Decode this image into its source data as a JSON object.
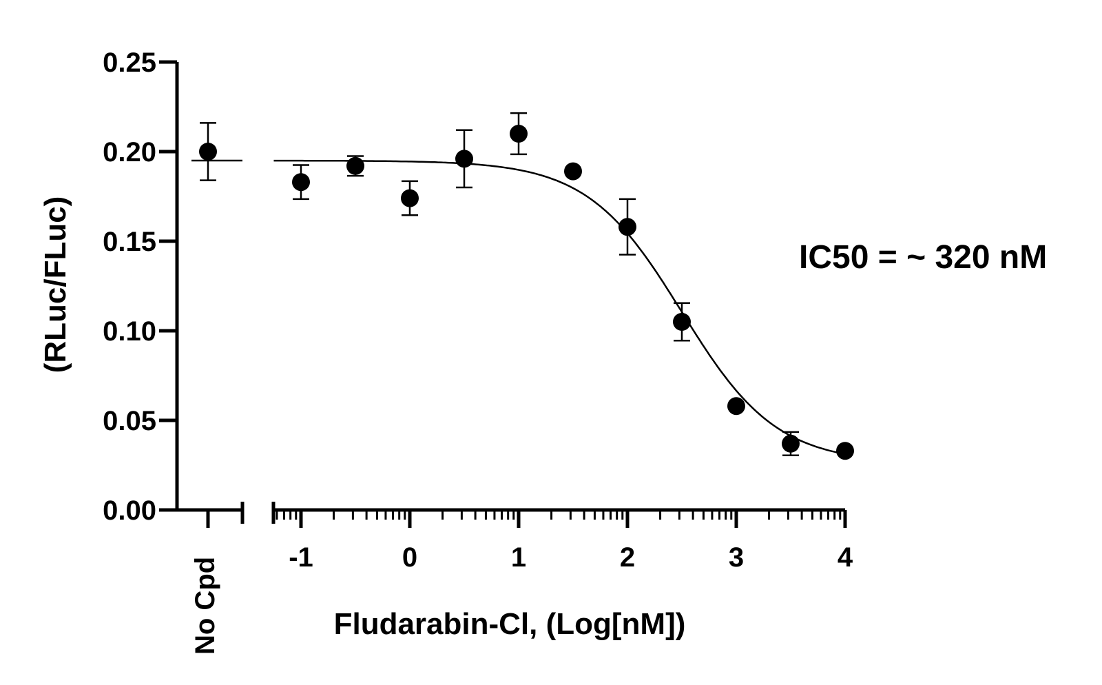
{
  "chart_data": {
    "type": "scatter",
    "title": "",
    "xlabel": "Fludarabin-Cl, (Log[nM])",
    "ylabel": "(RLuc/FLuc)",
    "ylim": [
      0,
      0.25
    ],
    "xlim": [
      -1.25,
      4
    ],
    "y_ticks": [
      "0.00",
      "0.05",
      "0.10",
      "0.15",
      "0.20",
      "0.25"
    ],
    "x_ticks": [
      "-1",
      "0",
      "1",
      "2",
      "3",
      "4"
    ],
    "x_scale": "log10 concentration (nM)",
    "grid": false,
    "control": {
      "label": "No Cpd",
      "y": 0.2,
      "err": 0.016,
      "baseline": 0.195
    },
    "points": [
      {
        "x": -1.0,
        "y": 0.183,
        "err": 0.0095
      },
      {
        "x": -0.5,
        "y": 0.192,
        "err": 0.0055
      },
      {
        "x": 0.0,
        "y": 0.174,
        "err": 0.0095
      },
      {
        "x": 0.5,
        "y": 0.196,
        "err": 0.016
      },
      {
        "x": 1.0,
        "y": 0.21,
        "err": 0.0115
      },
      {
        "x": 1.5,
        "y": 0.189,
        "err": 0
      },
      {
        "x": 2.0,
        "y": 0.158,
        "err": 0.0155
      },
      {
        "x": 2.5,
        "y": 0.105,
        "err": 0.0105
      },
      {
        "x": 3.0,
        "y": 0.058,
        "err": 0
      },
      {
        "x": 3.5,
        "y": 0.037,
        "err": 0.0065
      },
      {
        "x": 4.0,
        "y": 0.033,
        "err": 0
      }
    ],
    "fit": {
      "model": "4PL",
      "top": 0.195,
      "bottom": 0.026,
      "log_ic50": 2.5,
      "hill_slope": 1.0,
      "x_range": [
        -1.25,
        4
      ]
    },
    "annotation": "IC50 = ~ 320 nM"
  }
}
